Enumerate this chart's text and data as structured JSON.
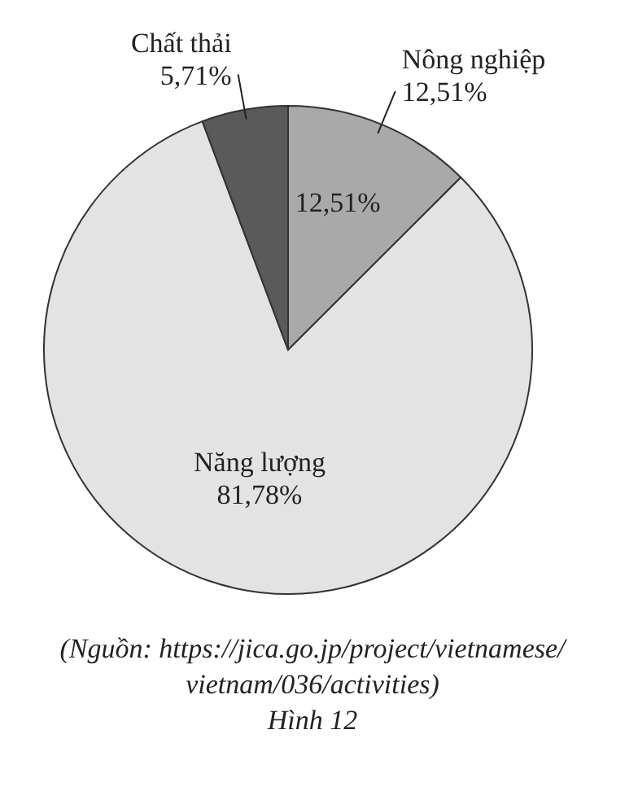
{
  "chart_data": {
    "type": "pie",
    "categories": [
      "Nông nghiệp",
      "Năng lượng",
      "Chất thải"
    ],
    "values": [
      12.51,
      81.78,
      5.71
    ],
    "colors": [
      "#a9a9a9",
      "#e3e3e3",
      "#5a5a5a"
    ],
    "value_labels": [
      "12,51%",
      "81,78%",
      "5,71%"
    ],
    "annotations": [
      {
        "text": "12,51%",
        "x": "Nông nghiệp"
      },
      "(Nguồn: https://jica.go.jp/project/vietnamese/vietnam/036/activities)",
      "Hình 12"
    ]
  }
}
